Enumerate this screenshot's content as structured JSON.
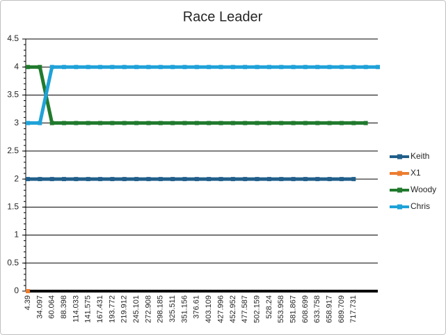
{
  "chart_data": {
    "type": "line",
    "title": "Race Leader",
    "categories": [
      "4.39",
      "34.097",
      "60.064",
      "88.398",
      "114.033",
      "141.575",
      "167.431",
      "193.772",
      "219.912",
      "245.101",
      "272.908",
      "298.185",
      "325.511",
      "351.156",
      "376.61",
      "403.109",
      "427.996",
      "452.952",
      "477.587",
      "502.159",
      "528.24",
      "553.958",
      "581.867",
      "608.699",
      "633.758",
      "658.917",
      "689.709",
      "717.731",
      null,
      null
    ],
    "series": [
      {
        "name": "Keith",
        "color": "#215f8a",
        "values": [
          2,
          2,
          2,
          2,
          2,
          2,
          2,
          2,
          2,
          2,
          2,
          2,
          2,
          2,
          2,
          2,
          2,
          2,
          2,
          2,
          2,
          2,
          2,
          2,
          2,
          2,
          2,
          2,
          null,
          null
        ]
      },
      {
        "name": "X1",
        "color": "#ed7d31",
        "values": [
          0,
          null,
          null,
          null,
          null,
          null,
          null,
          null,
          null,
          null,
          null,
          null,
          null,
          null,
          null,
          null,
          null,
          null,
          null,
          null,
          null,
          null,
          null,
          null,
          null,
          null,
          null,
          null,
          null,
          null
        ]
      },
      {
        "name": "Woody",
        "color": "#217a2e",
        "values": [
          4,
          4,
          3,
          3,
          3,
          3,
          3,
          3,
          3,
          3,
          3,
          3,
          3,
          3,
          3,
          3,
          3,
          3,
          3,
          3,
          3,
          3,
          3,
          3,
          3,
          3,
          3,
          3,
          3,
          null
        ]
      },
      {
        "name": "Chris",
        "color": "#1fa2d8",
        "values": [
          3,
          3,
          4,
          4,
          4,
          4,
          4,
          4,
          4,
          4,
          4,
          4,
          4,
          4,
          4,
          4,
          4,
          4,
          4,
          4,
          4,
          4,
          4,
          4,
          4,
          4,
          4,
          4,
          4,
          4
        ]
      }
    ],
    "ylim": [
      0,
      4.5
    ],
    "yticks": [
      0,
      0.5,
      1,
      1.5,
      2,
      2.5,
      3,
      3.5,
      4,
      4.5
    ],
    "grid": true,
    "legend": "right"
  }
}
